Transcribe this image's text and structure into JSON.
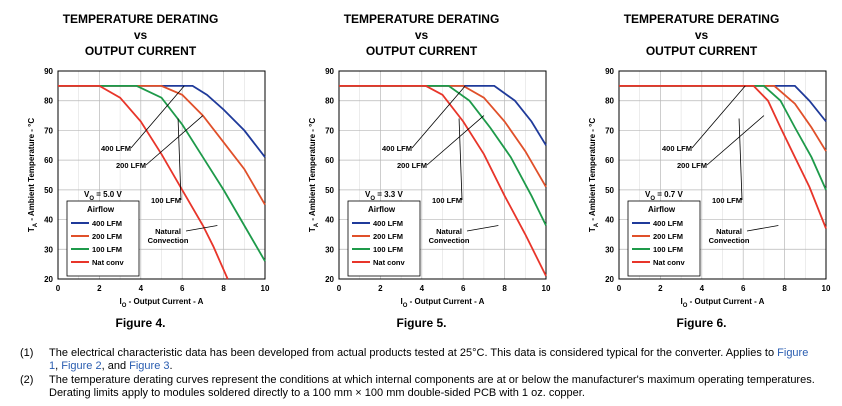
{
  "chart_data": [
    {
      "type": "line",
      "title_lines": [
        "TEMPERATURE DERATING",
        "vs",
        "OUTPUT CURRENT"
      ],
      "xlabel": "I_O - Output Current - A",
      "ylabel": "T_A - Ambient Temperature - °C",
      "xlim": [
        0,
        10
      ],
      "ylim": [
        20,
        90
      ],
      "xticks": [
        0,
        2,
        4,
        6,
        8,
        10
      ],
      "yticks": [
        20,
        30,
        40,
        50,
        60,
        70,
        80,
        90
      ],
      "grid": true,
      "vo_label": "V_O = 5.0 V",
      "legend": {
        "title": "Airflow",
        "placement": "bottom-left"
      },
      "series": [
        {
          "name": "400 LFM",
          "color": "#1f3a9a",
          "points": [
            [
              0,
              85
            ],
            [
              6.5,
              85
            ],
            [
              7.2,
              82
            ],
            [
              8,
              77
            ],
            [
              9,
              70
            ],
            [
              10,
              61
            ]
          ]
        },
        {
          "name": "200 LFM",
          "color": "#e0502a",
          "points": [
            [
              0,
              85
            ],
            [
              5,
              85
            ],
            [
              6,
              82
            ],
            [
              7,
              75
            ],
            [
              8,
              66
            ],
            [
              9,
              57
            ],
            [
              10,
              45
            ]
          ]
        },
        {
          "name": "100 LFM",
          "color": "#1e9a4a",
          "points": [
            [
              0,
              85
            ],
            [
              3.8,
              85
            ],
            [
              5,
              81
            ],
            [
              6,
              72
            ],
            [
              7,
              61
            ],
            [
              8,
              50
            ],
            [
              9,
              38
            ],
            [
              10,
              26
            ]
          ]
        },
        {
          "name": "Nat conv",
          "color": "#e8352a",
          "points": [
            [
              0,
              85
            ],
            [
              2,
              85
            ],
            [
              3,
              81
            ],
            [
              4,
              73
            ],
            [
              5,
              62
            ],
            [
              6,
              50
            ],
            [
              7,
              38
            ],
            [
              7.5,
              31
            ],
            [
              8.2,
              20
            ]
          ]
        }
      ],
      "annotations": [
        "400 LFM",
        "200 LFM",
        "100 LFM",
        "Natural\nConvection"
      ],
      "figure_label": "Figure 4."
    },
    {
      "type": "line",
      "title_lines": [
        "TEMPERATURE DERATING",
        "vs",
        "OUTPUT CURRENT"
      ],
      "xlabel": "I_O - Output Current - A",
      "ylabel": "T_A - Ambient Temperature - °C",
      "xlim": [
        0,
        10
      ],
      "ylim": [
        20,
        90
      ],
      "xticks": [
        0,
        2,
        4,
        6,
        8,
        10
      ],
      "yticks": [
        20,
        30,
        40,
        50,
        60,
        70,
        80,
        90
      ],
      "grid": true,
      "vo_label": "V_O = 3.3 V",
      "legend": {
        "title": "Airflow",
        "placement": "bottom-left"
      },
      "series": [
        {
          "name": "400 LFM",
          "color": "#1f3a9a",
          "points": [
            [
              0,
              85
            ],
            [
              7.5,
              85
            ],
            [
              8.5,
              80
            ],
            [
              9.3,
              73
            ],
            [
              10,
              65
            ]
          ]
        },
        {
          "name": "200 LFM",
          "color": "#e0502a",
          "points": [
            [
              0,
              85
            ],
            [
              6,
              85
            ],
            [
              7,
              81
            ],
            [
              8,
              73
            ],
            [
              9,
              63
            ],
            [
              10,
              51
            ]
          ]
        },
        {
          "name": "100 LFM",
          "color": "#1e9a4a",
          "points": [
            [
              0,
              85
            ],
            [
              5.3,
              85
            ],
            [
              6.3,
              80
            ],
            [
              7.3,
              71
            ],
            [
              8.3,
              61
            ],
            [
              9.3,
              48
            ],
            [
              10,
              38
            ]
          ]
        },
        {
          "name": "Nat conv",
          "color": "#e8352a",
          "points": [
            [
              0,
              85
            ],
            [
              4.2,
              85
            ],
            [
              5,
              82
            ],
            [
              6,
              73
            ],
            [
              7,
              62
            ],
            [
              8,
              48
            ],
            [
              9,
              35
            ],
            [
              10,
              21
            ]
          ]
        }
      ],
      "annotations": [
        "400 LFM",
        "200 LFM",
        "100 LFM",
        "Natural\nConvection"
      ],
      "figure_label": "Figure 5."
    },
    {
      "type": "line",
      "title_lines": [
        "TEMPERATURE DERATING",
        "vs",
        "OUTPUT CURRENT"
      ],
      "xlabel": "I_O - Output Current - A",
      "ylabel": "T_A - Ambient Temperature - °C",
      "xlim": [
        0,
        10
      ],
      "ylim": [
        20,
        90
      ],
      "xticks": [
        0,
        2,
        4,
        6,
        8,
        10
      ],
      "yticks": [
        20,
        30,
        40,
        50,
        60,
        70,
        80,
        90
      ],
      "grid": true,
      "vo_label": "V_O = 0.7 V",
      "legend": {
        "title": "Airflow",
        "placement": "bottom-left"
      },
      "series": [
        {
          "name": "400 LFM",
          "color": "#1f3a9a",
          "points": [
            [
              0,
              85
            ],
            [
              8.5,
              85
            ],
            [
              9.2,
              80
            ],
            [
              10,
              73
            ]
          ]
        },
        {
          "name": "200 LFM",
          "color": "#e0502a",
          "points": [
            [
              0,
              85
            ],
            [
              7.5,
              85
            ],
            [
              8.5,
              79
            ],
            [
              9.3,
              71
            ],
            [
              10,
              63
            ]
          ]
        },
        {
          "name": "100 LFM",
          "color": "#1e9a4a",
          "points": [
            [
              0,
              85
            ],
            [
              7,
              85
            ],
            [
              7.8,
              80
            ],
            [
              8.5,
              71
            ],
            [
              9.3,
              61
            ],
            [
              10,
              50
            ]
          ]
        },
        {
          "name": "Nat conv",
          "color": "#e8352a",
          "points": [
            [
              0,
              85
            ],
            [
              6.5,
              85
            ],
            [
              7.2,
              80
            ],
            [
              7.8,
              71
            ],
            [
              8.5,
              61
            ],
            [
              9.2,
              51
            ],
            [
              10,
              37
            ]
          ]
        }
      ],
      "annotations": [
        "400 LFM",
        "200 LFM",
        "100 LFM",
        "Natural\nConvection"
      ],
      "figure_label": "Figure 6."
    }
  ],
  "footnotes": [
    {
      "num": "(1)",
      "text": "The electrical characteristic data has been developed from actual products tested at 25°C. This data is considered typical for the converter. Applies to ",
      "links": [
        "Figure 1",
        "Figure 2",
        "Figure 3"
      ]
    },
    {
      "num": "(2)",
      "text": "The temperature derating curves represent the conditions at which internal components are at or below the manufacturer's maximum operating temperatures. Derating limits apply to modules soldered directly to a 100 mm × 100 mm double-sided PCB with 1 oz. copper."
    }
  ]
}
